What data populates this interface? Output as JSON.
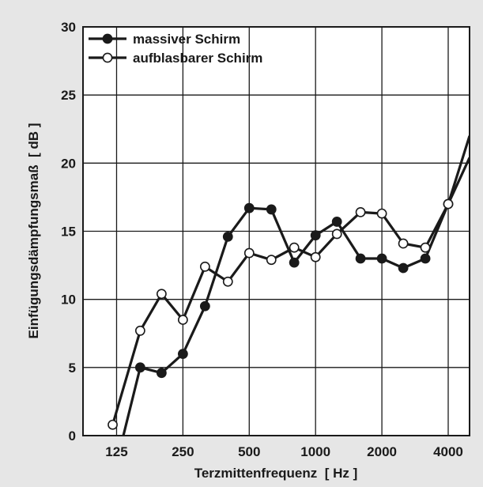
{
  "chart_data": {
    "type": "line",
    "xlabel": "Terzmittenfrequenz  [ Hz ]",
    "ylabel": "Einfügungsdämpfungsmaß  [ dB ]",
    "x_tick_labels": [
      "125",
      "250",
      "500",
      "1000",
      "2000",
      "4000"
    ],
    "x_tick_values": [
      125,
      250,
      500,
      1000,
      2000,
      4000
    ],
    "y_ticks": [
      0,
      5,
      10,
      15,
      20,
      25,
      30
    ],
    "ylim": [
      0,
      30
    ],
    "xscale": "log2",
    "x_range": [
      88,
      5000
    ],
    "grid": true,
    "legend_position": "top-left",
    "series": [
      {
        "name": "massiver Schirm",
        "marker": "filled-circle",
        "color": "#1a1a1a",
        "points": [
          {
            "x": 125,
            "y": -2
          },
          {
            "x": 160,
            "y": 5.0
          },
          {
            "x": 200,
            "y": 4.6
          },
          {
            "x": 250,
            "y": 6.0
          },
          {
            "x": 315,
            "y": 9.5
          },
          {
            "x": 400,
            "y": 14.6
          },
          {
            "x": 500,
            "y": 16.7
          },
          {
            "x": 630,
            "y": 16.6
          },
          {
            "x": 800,
            "y": 12.7
          },
          {
            "x": 1000,
            "y": 14.7
          },
          {
            "x": 1250,
            "y": 15.7
          },
          {
            "x": 1600,
            "y": 13.0
          },
          {
            "x": 2000,
            "y": 13.0
          },
          {
            "x": 2500,
            "y": 12.3
          },
          {
            "x": 3150,
            "y": 13.0
          },
          {
            "x": 4000,
            "y": 17.0
          },
          {
            "x": 5000,
            "y": 22.0
          }
        ]
      },
      {
        "name": "aufblasbarer Schirm",
        "marker": "open-circle",
        "color": "#1a1a1a",
        "points": [
          {
            "x": 120,
            "y": 0.8
          },
          {
            "x": 160,
            "y": 7.7
          },
          {
            "x": 200,
            "y": 10.4
          },
          {
            "x": 250,
            "y": 8.5
          },
          {
            "x": 315,
            "y": 12.4
          },
          {
            "x": 400,
            "y": 11.3
          },
          {
            "x": 500,
            "y": 13.4
          },
          {
            "x": 630,
            "y": 12.9
          },
          {
            "x": 800,
            "y": 13.8
          },
          {
            "x": 1000,
            "y": 13.1
          },
          {
            "x": 1250,
            "y": 14.8
          },
          {
            "x": 1600,
            "y": 16.4
          },
          {
            "x": 2000,
            "y": 16.3
          },
          {
            "x": 2500,
            "y": 14.1
          },
          {
            "x": 3150,
            "y": 13.8
          },
          {
            "x": 4000,
            "y": 17.0
          },
          {
            "x": 5000,
            "y": 20.4
          }
        ]
      }
    ]
  }
}
